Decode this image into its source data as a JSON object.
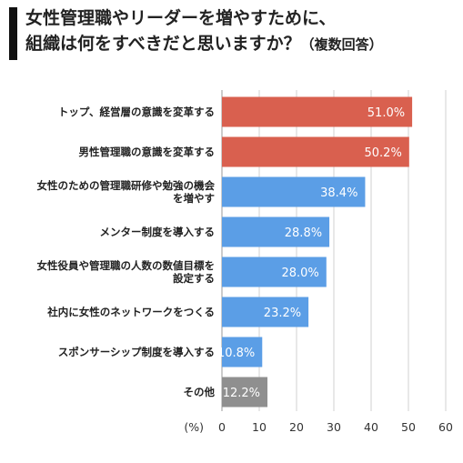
{
  "title": {
    "line1": "女性管理職やリーダーを増やすために、",
    "line2": "組織は何をすべきだと思いますか？",
    "note": "（複数回答）"
  },
  "chart_data": {
    "type": "bar",
    "orientation": "horizontal",
    "categories": [
      [
        "トップ、経営層の意識を変革する"
      ],
      [
        "男性管理職の意識を変革する"
      ],
      [
        "女性のための管理職研修や勉強の機会",
        "を増やす"
      ],
      [
        "メンター制度を導入する"
      ],
      [
        "女性役員や管理職の人数の数値目標を",
        "設定する"
      ],
      [
        "社内に女性のネットワークをつくる"
      ],
      [
        "スポンサーシップ制度を導入する"
      ],
      [
        "その他"
      ]
    ],
    "values": [
      51.0,
      50.2,
      38.4,
      28.8,
      28.0,
      23.2,
      10.8,
      12.2
    ],
    "value_labels": [
      "51.0%",
      "50.2%",
      "38.4%",
      "28.8%",
      "28.0%",
      "23.2%",
      "10.8%",
      "12.2%"
    ],
    "colors": [
      "#d9604f",
      "#d9604f",
      "#5b9ee6",
      "#5b9ee6",
      "#5b9ee6",
      "#5b9ee6",
      "#5b9ee6",
      "#8f8f8f"
    ],
    "xlim": [
      0,
      60
    ],
    "xticks": [
      0,
      10,
      20,
      30,
      40,
      50,
      60
    ],
    "unit_label": "(%)",
    "grid": true
  }
}
